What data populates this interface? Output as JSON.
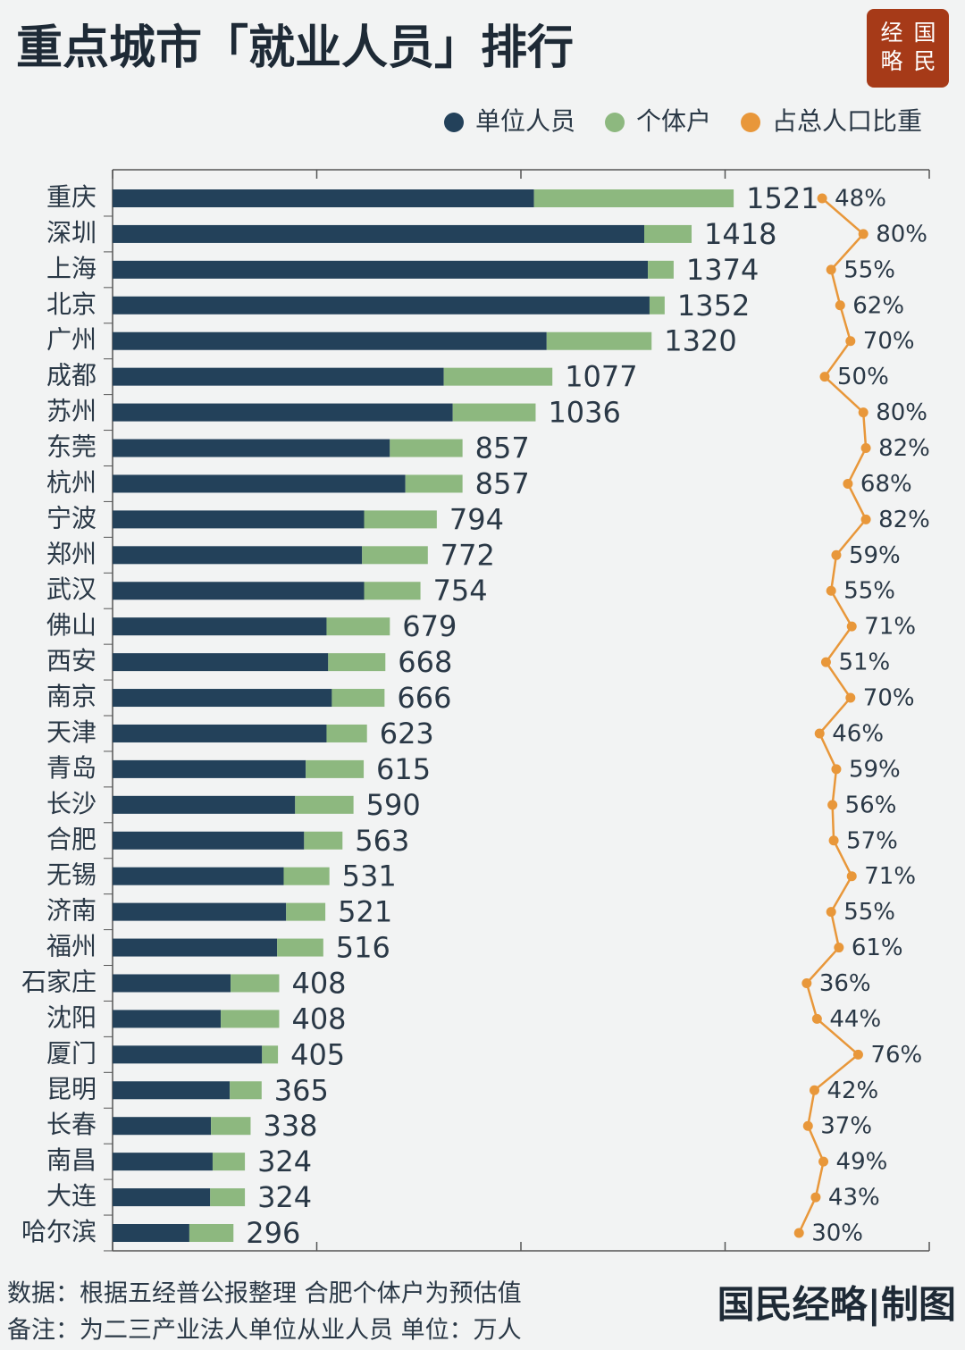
{
  "chart_data": {
    "type": "bar",
    "orientation": "horizontal",
    "stacked": true,
    "title": "重点城市「就业人员」排行",
    "brand": [
      "经",
      "国",
      "略",
      "民"
    ],
    "categories": [
      "重庆",
      "深圳",
      "上海",
      "北京",
      "广州",
      "成都",
      "苏州",
      "东莞",
      "杭州",
      "宁波",
      "郑州",
      "武汉",
      "佛山",
      "西安",
      "南京",
      "天津",
      "青岛",
      "长沙",
      "合肥",
      "无锡",
      "济南",
      "福州",
      "石家庄",
      "沈阳",
      "厦门",
      "昆明",
      "长春",
      "南昌",
      "大连",
      "哈尔滨"
    ],
    "series": [
      {
        "name": "单位人员",
        "color": "#23415a",
        "values": [
          1032,
          1302,
          1311,
          1315,
          1063,
          811,
          833,
          679,
          717,
          616,
          611,
          616,
          524,
          528,
          537,
          524,
          473,
          447,
          469,
          419,
          425,
          403,
          289,
          265,
          366,
          287,
          241,
          245,
          239,
          188
        ]
      },
      {
        "name": "个体户",
        "color": "#8db87f",
        "values": [
          489,
          116,
          63,
          37,
          257,
          266,
          203,
          178,
          140,
          178,
          161,
          138,
          155,
          140,
          129,
          99,
          142,
          143,
          94,
          112,
          96,
          113,
          119,
          143,
          39,
          78,
          97,
          79,
          85,
          108
        ]
      },
      {
        "name": "占总人口比重",
        "color": "#e8973a",
        "type": "line",
        "axis": "x2",
        "values": [
          48,
          80,
          55,
          62,
          70,
          50,
          80,
          82,
          68,
          82,
          59,
          55,
          71,
          51,
          70,
          46,
          59,
          56,
          57,
          71,
          55,
          61,
          36,
          44,
          76,
          42,
          37,
          49,
          43,
          30
        ],
        "value_labels": [
          "48%",
          "80%",
          "55%",
          "62%",
          "70%",
          "50%",
          "80%",
          "82%",
          "68%",
          "82%",
          "59%",
          "55%",
          "71%",
          "51%",
          "70%",
          "46%",
          "59%",
          "56%",
          "57%",
          "71%",
          "55%",
          "61%",
          "36%",
          "44%",
          "76%",
          "42%",
          "37%",
          "49%",
          "43%",
          "30%"
        ]
      }
    ],
    "totals": [
      1521,
      1418,
      1374,
      1352,
      1320,
      1077,
      1036,
      857,
      857,
      794,
      772,
      754,
      679,
      668,
      666,
      623,
      615,
      590,
      563,
      531,
      521,
      516,
      408,
      408,
      405,
      365,
      338,
      324,
      324,
      296
    ],
    "xlim": [
      0,
      2000
    ],
    "xticks": [
      0,
      500,
      1000,
      1500,
      2000
    ],
    "x2lim": [
      0,
      100
    ],
    "footnotes": [
      "数据：根据五经普公报整理 合肥个体户为预估值",
      "备注：为二三产业法人单位从业人员 单位：万人"
    ],
    "credit": "国民经略|制图"
  }
}
